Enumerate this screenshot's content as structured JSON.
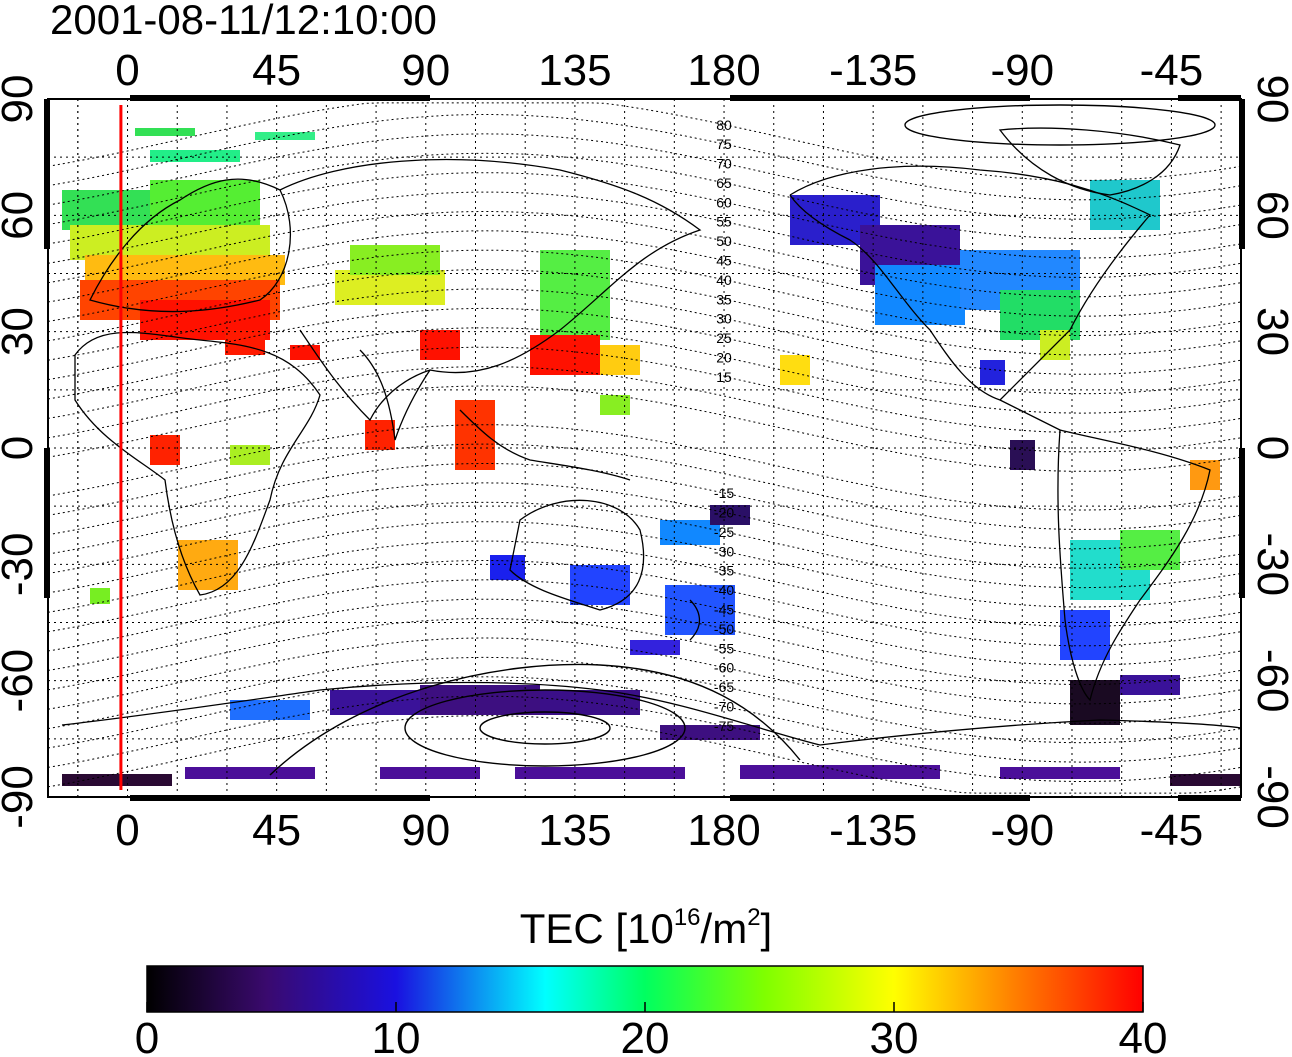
{
  "title": "2001-08-11/12:10:00",
  "map": {
    "lon_ticks_top": [
      "0",
      "45",
      "90",
      "135",
      "180",
      "-135",
      "-90",
      "-45"
    ],
    "lon_ticks_bottom": [
      "0",
      "45",
      "90",
      "135",
      "180",
      "-135",
      "-90",
      "-45"
    ],
    "lat_ticks_left": [
      "90",
      "60",
      "30",
      "0",
      "-30",
      "-60",
      "-90"
    ],
    "lat_ticks_right": [
      "90",
      "60",
      "30",
      "0",
      "-30",
      "-60",
      "-90"
    ],
    "lon_tick_values": [
      0,
      45,
      90,
      135,
      180,
      225,
      270,
      315
    ],
    "lat_tick_values": [
      90,
      60,
      30,
      0,
      -30,
      -60,
      -90
    ],
    "contour_labels_north": [
      "80",
      "75",
      "70",
      "65",
      "60",
      "55",
      "50",
      "45",
      "40",
      "35",
      "30",
      "25",
      "20",
      "15"
    ],
    "contour_labels_south": [
      "-15",
      "-20",
      "-25",
      "-30",
      "-35",
      "-40",
      "-45",
      "-50",
      "-55",
      "-60",
      "-65",
      "-70",
      "-75"
    ],
    "terminator_longitude": -2,
    "colors": {
      "terminator": "#ff0000",
      "grid": "#000000",
      "coast": "#000000"
    }
  },
  "colorbar": {
    "label_main": "TEC  [10",
    "label_exp1": "16",
    "label_mid": "/m",
    "label_exp2": "2",
    "label_end": "]",
    "min": 0,
    "max": 40,
    "ticks": [
      "0",
      "10",
      "20",
      "30",
      "40"
    ],
    "tick_values": [
      0,
      10,
      20,
      30,
      40
    ],
    "colors": [
      "#000000",
      "#4b0082",
      "#0000ff",
      "#00ffff",
      "#00ff00",
      "#ffff00",
      "#ff8c00",
      "#ff0000"
    ]
  }
}
